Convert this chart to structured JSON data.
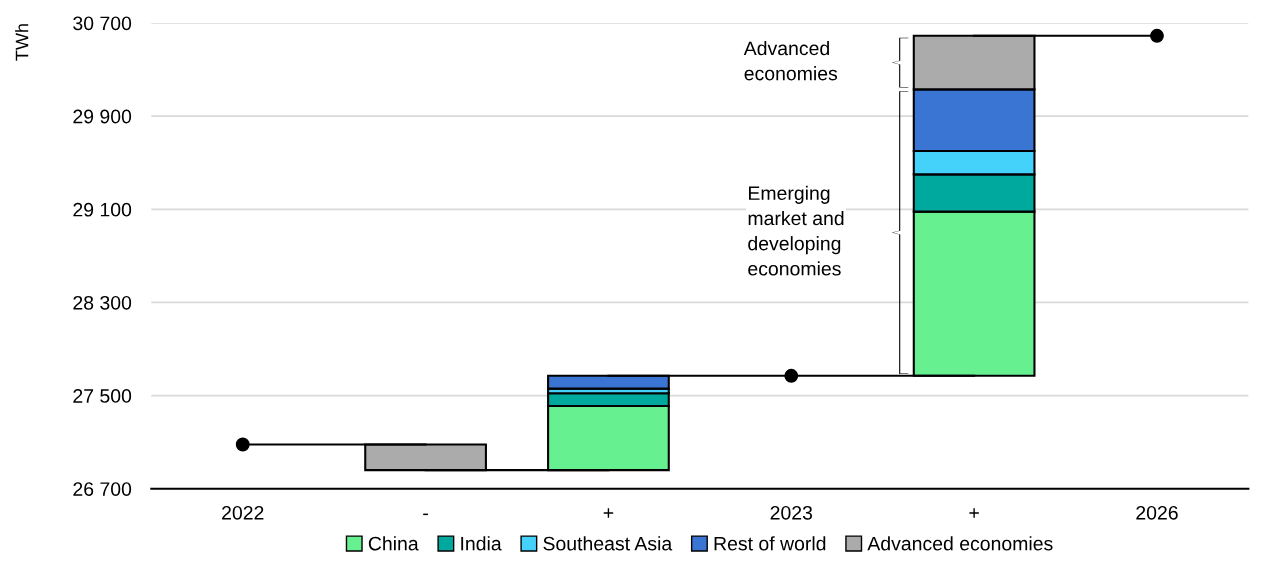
{
  "chart_data": {
    "type": "bar",
    "ylabel": "TWh",
    "categories": [
      "2022",
      "-",
      "+",
      "2023",
      "+",
      "2026"
    ],
    "series": [
      {
        "name": "China",
        "color": "#66f08f",
        "base": [
          null,
          null,
          26860,
          null,
          27670,
          null
        ],
        "values": [
          null,
          null,
          550,
          null,
          1410,
          null
        ]
      },
      {
        "name": "India",
        "color": "#00a99d",
        "base": [
          null,
          null,
          27410,
          null,
          29080,
          null
        ],
        "values": [
          null,
          null,
          110,
          null,
          320,
          null
        ]
      },
      {
        "name": "Southeast Asia",
        "color": "#45d2fa",
        "base": [
          null,
          null,
          27520,
          null,
          29400,
          null
        ],
        "values": [
          null,
          null,
          40,
          null,
          200,
          null
        ]
      },
      {
        "name": "Rest of world",
        "color": "#3b75d3",
        "base": [
          null,
          null,
          27560,
          null,
          29600,
          null
        ],
        "values": [
          null,
          null,
          110,
          null,
          530,
          null
        ]
      },
      {
        "name": "Advanced economies",
        "color": "#ababab",
        "base": [
          null,
          27080,
          null,
          null,
          30130,
          null
        ],
        "values": [
          null,
          -220,
          null,
          null,
          460,
          null
        ]
      },
      {
        "type": "line",
        "color": "#000000",
        "values": [
          27080,
          27080,
          null,
          null,
          null,
          null
        ]
      },
      {
        "type": "line",
        "color": "#000000",
        "values": [
          null,
          26860,
          26860,
          null,
          null,
          null
        ]
      },
      {
        "type": "line",
        "color": "#000000",
        "values": [
          null,
          null,
          27670,
          27670,
          27670,
          null
        ]
      },
      {
        "type": "line",
        "color": "#000000",
        "values": [
          null,
          null,
          null,
          null,
          30590,
          30590
        ]
      },
      {
        "type": "scatter",
        "color": "#000000",
        "marker": "circle",
        "values": [
          27080,
          null,
          null,
          27670,
          null,
          30590
        ]
      }
    ],
    "ylim": [
      26700,
      30700
    ],
    "yticks": [
      {
        "value": 26700,
        "label": "26 700"
      },
      {
        "value": 27500,
        "label": "27 500"
      },
      {
        "value": 28300,
        "label": "28 300"
      },
      {
        "value": 29100,
        "label": "29 100"
      },
      {
        "value": 29900,
        "label": "29 900"
      },
      {
        "value": 30700,
        "label": "30 700"
      }
    ],
    "grid": "y",
    "legend": "bottom",
    "annotations": [
      "Advanced economies",
      "Emerging market and developing economies"
    ]
  }
}
